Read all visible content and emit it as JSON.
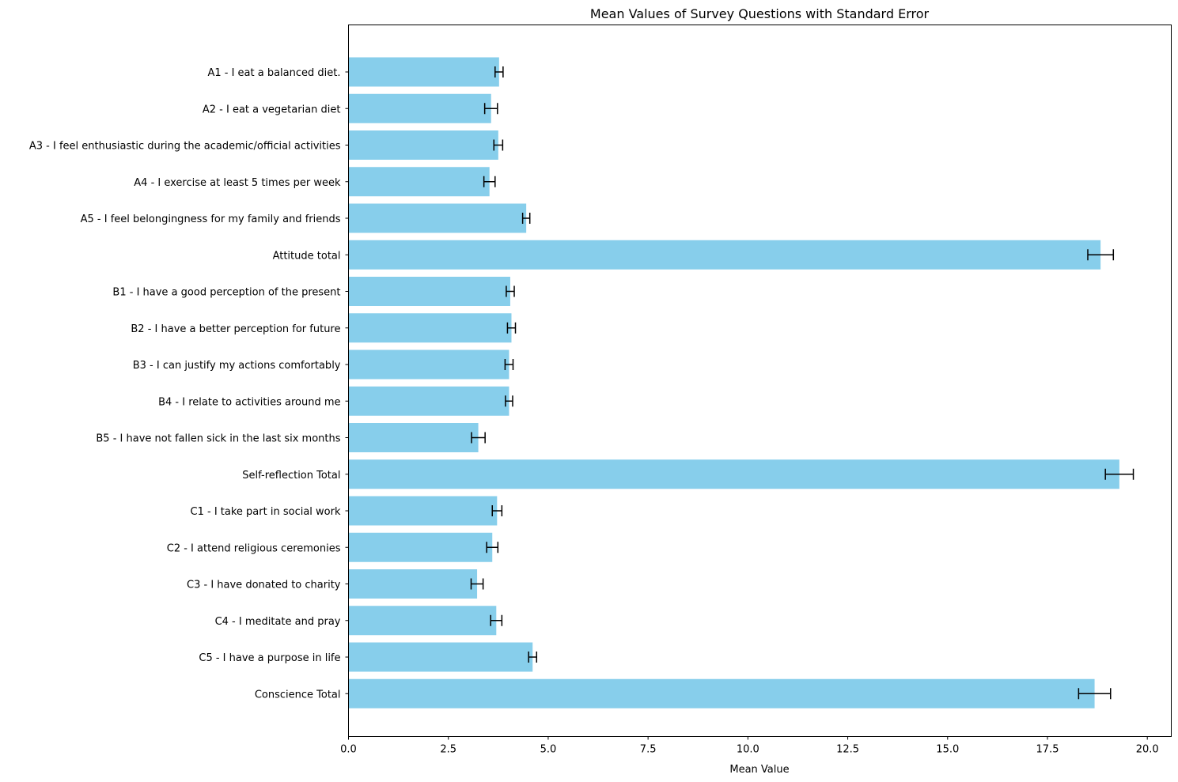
{
  "chart_data": {
    "type": "bar",
    "orientation": "horizontal",
    "title": "Mean Values of Survey Questions with Standard Error",
    "xlabel": "Mean Value",
    "ylabel": "",
    "xlim": [
      0,
      20.6
    ],
    "xticks": [
      0.0,
      2.5,
      5.0,
      7.5,
      10.0,
      12.5,
      15.0,
      17.5,
      20.0
    ],
    "xtick_labels": [
      "0.0",
      "2.5",
      "5.0",
      "7.5",
      "10.0",
      "12.5",
      "15.0",
      "17.5",
      "20.0"
    ],
    "grid": false,
    "bar_color": "#87CEEB",
    "error_color": "#000000",
    "categories": [
      "A1 - I eat a balanced diet.",
      "A2 - I eat a vegetarian diet",
      "A3 - I feel enthusiastic during the academic/official activities",
      "A4 - I exercise at least 5 times per week",
      "A5 - I feel belongingness for my family and friends",
      "Attitude total",
      "B1 - I have a good perception of the present",
      "B2 - I have a better perception for future",
      "B3 - I can justify my actions comfortably",
      "B4 - I relate to activities around me",
      "B5 - I have not fallen sick in the last six months",
      "Self-reflection Total",
      "C1 - I take part in social work",
      "C2 - I attend religious ceremonies",
      "C3 - I have donated to charity",
      "C4 - I meditate and pray",
      "C5 - I have a purpose in life",
      "Conscience Total"
    ],
    "values": [
      3.77,
      3.57,
      3.75,
      3.53,
      4.45,
      18.83,
      4.05,
      4.08,
      4.02,
      4.02,
      3.25,
      19.3,
      3.72,
      3.6,
      3.22,
      3.7,
      4.61,
      18.68
    ],
    "errors": [
      0.1,
      0.16,
      0.11,
      0.14,
      0.09,
      0.32,
      0.1,
      0.1,
      0.1,
      0.09,
      0.17,
      0.35,
      0.12,
      0.14,
      0.15,
      0.14,
      0.1,
      0.4
    ]
  }
}
